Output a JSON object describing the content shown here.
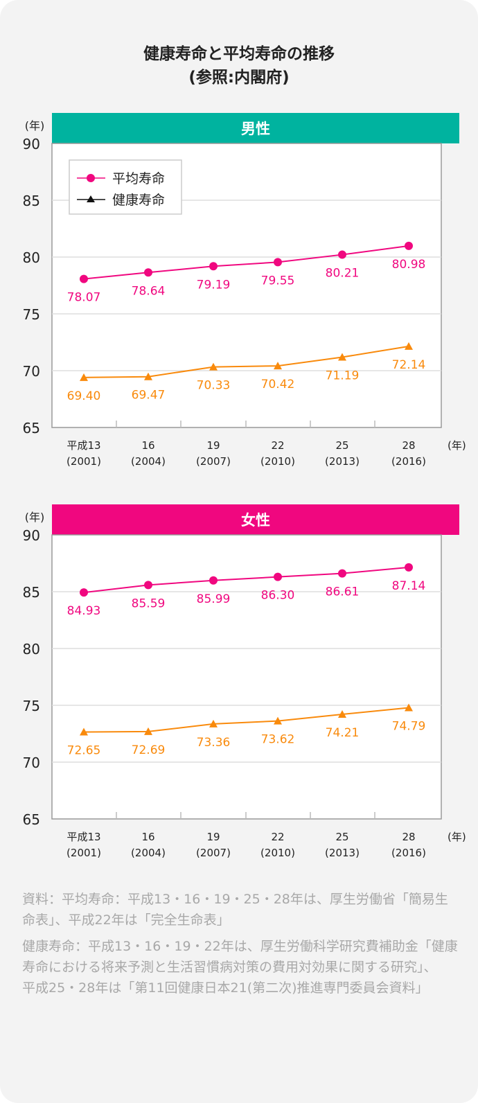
{
  "title_line1": "健康寿命と平均寿命の推移",
  "title_line2": "(参照:内閣府)",
  "chart_data": [
    {
      "type": "line",
      "title": "男性",
      "header_color": "#00b39f",
      "ylabel": "(年)",
      "xlabel": "(年)",
      "ylim": [
        65,
        90
      ],
      "yticks": [
        90,
        85,
        80,
        75,
        70,
        65
      ],
      "grid": true,
      "legend": "top-left",
      "categories": [
        [
          "平成13",
          "(2001)"
        ],
        [
          "16",
          "(2004)"
        ],
        [
          "19",
          "(2007)"
        ],
        [
          "22",
          "(2010)"
        ],
        [
          "25",
          "(2013)"
        ],
        [
          "28",
          "(2016)"
        ]
      ],
      "series": [
        {
          "name": "平均寿命",
          "color": "#f0077f",
          "marker": "circle",
          "values": [
            78.07,
            78.64,
            79.19,
            79.55,
            80.21,
            80.98
          ]
        },
        {
          "name": "健康寿命",
          "color": "#f98a0c",
          "marker": "triangle",
          "values": [
            69.4,
            69.47,
            70.33,
            70.42,
            71.19,
            72.14
          ]
        }
      ]
    },
    {
      "type": "line",
      "title": "女性",
      "header_color": "#f0077f",
      "ylabel": "(年)",
      "xlabel": "(年)",
      "ylim": [
        65,
        90
      ],
      "yticks": [
        90,
        85,
        80,
        75,
        70,
        65
      ],
      "grid": true,
      "categories": [
        [
          "平成13",
          "(2001)"
        ],
        [
          "16",
          "(2004)"
        ],
        [
          "19",
          "(2007)"
        ],
        [
          "22",
          "(2010)"
        ],
        [
          "25",
          "(2013)"
        ],
        [
          "28",
          "(2016)"
        ]
      ],
      "series": [
        {
          "name": "平均寿命",
          "color": "#f0077f",
          "marker": "circle",
          "values": [
            84.93,
            85.59,
            85.99,
            86.3,
            86.61,
            87.14
          ]
        },
        {
          "name": "健康寿命",
          "color": "#f98a0c",
          "marker": "triangle",
          "values": [
            72.65,
            72.69,
            73.36,
            73.62,
            74.21,
            74.79
          ]
        }
      ]
    }
  ],
  "notes": [
    "資料：平均寿命：平成13・16・19・25・28年は、厚生労働省「簡易生命表」、平成22年は「完全生命表」",
    "健康寿命：平成13・16・19・22年は、厚生労働科学研究費補助金「健康寿命における将来予測と生活習慣病対策の費用対効果に関する研究」、",
    "平成25・28年は「第11回健康日本21(第二次)推進専門委員会資料」"
  ]
}
